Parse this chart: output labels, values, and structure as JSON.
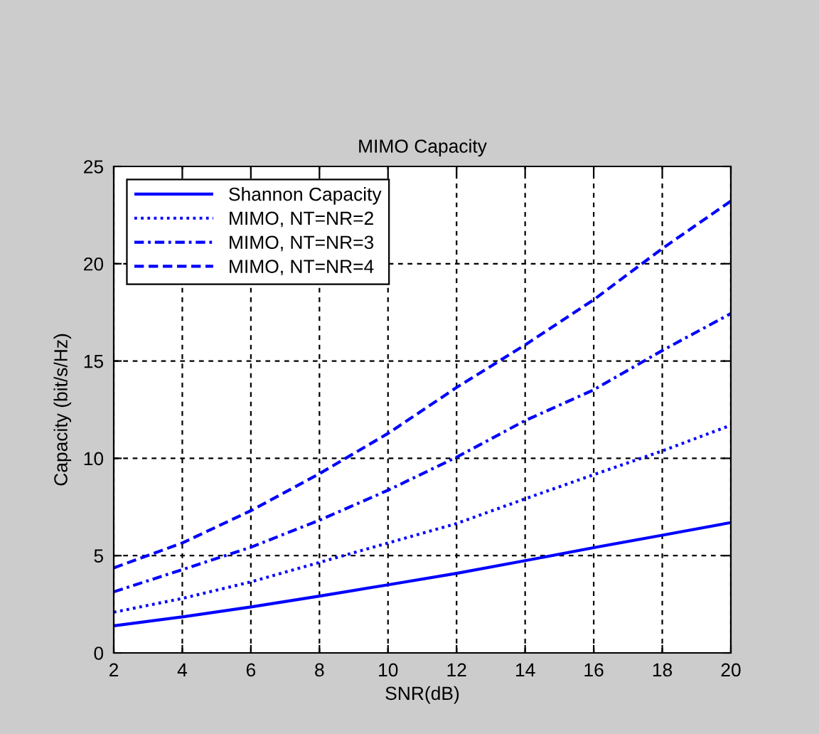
{
  "chart_data": {
    "type": "line",
    "title": "MIMO Capacity",
    "xlabel": "SNR(dB)",
    "ylabel": "Capacity (bit/s/Hz)",
    "x": [
      2,
      4,
      6,
      8,
      10,
      12,
      14,
      16,
      18,
      20
    ],
    "series": [
      {
        "name": "Shannon Capacity",
        "color": "#0000ff",
        "line_style": "solid",
        "values": [
          1.39,
          1.85,
          2.36,
          2.92,
          3.5,
          4.09,
          4.74,
          5.41,
          6.05,
          6.7
        ]
      },
      {
        "name": "MIMO, NT=NR=2",
        "color": "#0000ff",
        "line_style": "dotted",
        "values": [
          2.09,
          2.8,
          3.65,
          4.65,
          5.65,
          6.65,
          7.92,
          9.16,
          10.38,
          11.7
        ]
      },
      {
        "name": "MIMO, NT=NR=3",
        "color": "#0000ff",
        "line_style": "dashdot",
        "values": [
          3.14,
          4.28,
          5.43,
          6.82,
          8.36,
          10.06,
          11.94,
          13.52,
          15.54,
          17.44
        ]
      },
      {
        "name": "MIMO, NT=NR=4",
        "color": "#0000ff",
        "line_style": "dashed",
        "values": [
          4.37,
          5.65,
          7.31,
          9.21,
          11.28,
          13.64,
          15.83,
          18.15,
          20.78,
          23.22
        ]
      }
    ],
    "xlim": [
      2,
      20
    ],
    "xticks": [
      2,
      4,
      6,
      8,
      10,
      12,
      14,
      16,
      18,
      20
    ],
    "ylim": [
      0,
      25
    ],
    "yticks": [
      0,
      5,
      10,
      15,
      20,
      25
    ],
    "grid": true,
    "legend": "top left"
  }
}
